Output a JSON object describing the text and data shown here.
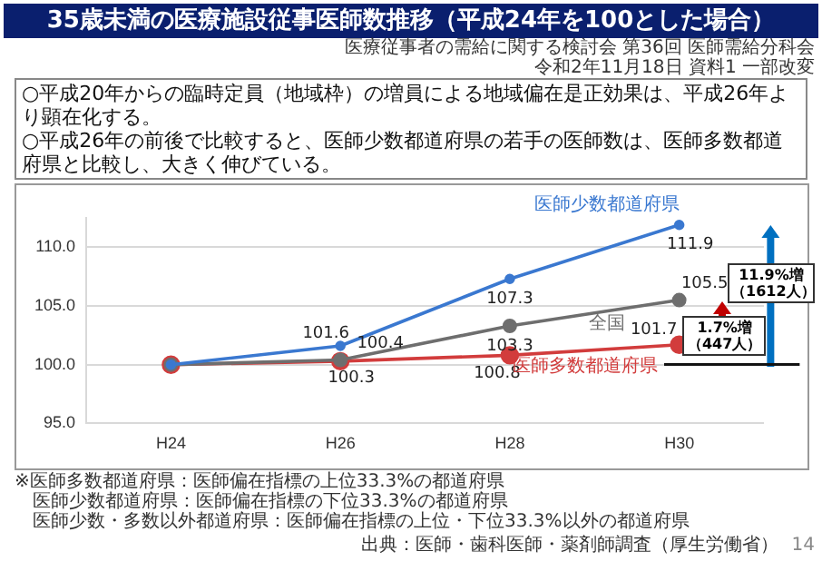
{
  "chart_data": {
    "type": "line",
    "title": "35歳未満の医療施設従事医師数推移（平成24年を100とした場合）",
    "categories": [
      "H24",
      "H26",
      "H28",
      "H30"
    ],
    "series": [
      {
        "name": "医師少数都道府県",
        "color": "#3a78d0",
        "values": [
          100,
          101.6,
          107.3,
          111.9
        ],
        "value_labels": [
          null,
          "101.6",
          "107.3",
          "111.9"
        ]
      },
      {
        "name": "全国",
        "color": "#6e6e6e",
        "values": [
          100,
          100.4,
          103.3,
          105.5
        ],
        "value_labels": [
          null,
          "100.4",
          "103.3",
          "105.5"
        ]
      },
      {
        "name": "医師多数都道府県",
        "color": "#d23c3c",
        "values": [
          100,
          100.3,
          100.8,
          101.7
        ],
        "value_labels": [
          null,
          "100.3",
          "100.8",
          "101.7"
        ]
      }
    ],
    "ylim": [
      95,
      112.5
    ],
    "yticks": [
      {
        "value": 95,
        "label": "95.0"
      },
      {
        "value": 100,
        "label": "100.0"
      },
      {
        "value": 105,
        "label": "105.0"
      },
      {
        "value": 110,
        "label": "110.0"
      }
    ],
    "grid": "y",
    "marker": "circle",
    "line_style": "solid",
    "annotations": [
      "医療従事者の需給に関する検討会 第36回 医師需給分科会",
      "令和2年11月18日 資料1 一部改変",
      "○平成20年からの臨時定員（地域枠）の増員による地域偏在是正効果は、平成26年より顕在化する。",
      "○平成26年の前後で比較すると、医師少数都道府県の若手の医師数は、医師多数都道府県と比較し、大きく伸びている。",
      "11.9%増（1612人）",
      "1.7%増（447人）",
      "※医師多数都道府県：医師偏在指標の上位33.3%の都道府県",
      "医師少数都道府県：医師偏在指標の下位33.3%の都道府県",
      "医師少数・多数以外都道府県：医師偏在指標の上位・下位33.3%以外の都道府県",
      "出典：医師・歯科医師・薬剤師調査（厚生労働省）",
      "14"
    ]
  }
}
